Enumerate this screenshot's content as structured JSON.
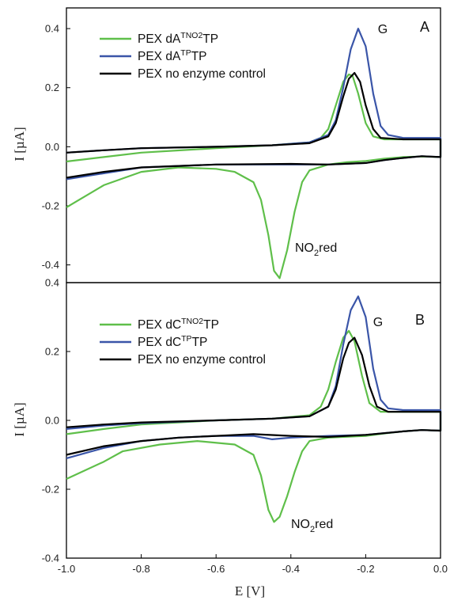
{
  "colors": {
    "green": "#5fbf4a",
    "blue": "#3a55a8",
    "black": "#000000"
  },
  "chart_data": [
    {
      "type": "line",
      "panel": "A",
      "peak_label": "G",
      "annotation": {
        "base": "NO",
        "sub": "2",
        "rest": "red"
      },
      "xlim": [
        -1.0,
        0.0
      ],
      "ylim": [
        -0.46,
        0.47
      ],
      "yticks": [
        "0.4",
        "0.2",
        "0.0",
        "-0.2",
        "-0.4"
      ],
      "ytick_values": [
        0.4,
        0.2,
        0.0,
        -0.2,
        -0.4
      ],
      "ylabel": "I [µA]",
      "legend": [
        {
          "pre": "PEX dA",
          "sup": "TNO2",
          "post": "TP",
          "color": "green"
        },
        {
          "pre": "PEX dA",
          "sup": "TP",
          "post": "TP",
          "color": "blue"
        },
        {
          "pre": "PEX no enzyme control",
          "sup": "",
          "post": "",
          "color": "black"
        }
      ],
      "series": [
        {
          "color": "green",
          "forward": [
            [
              -1.0,
              -0.05
            ],
            [
              -0.9,
              -0.035
            ],
            [
              -0.8,
              -0.02
            ],
            [
              -0.6,
              -0.005
            ],
            [
              -0.45,
              0.005
            ],
            [
              -0.35,
              0.015
            ],
            [
              -0.32,
              0.03
            ],
            [
              -0.3,
              0.06
            ],
            [
              -0.28,
              0.14
            ],
            [
              -0.26,
              0.22
            ],
            [
              -0.245,
              0.245
            ],
            [
              -0.235,
              0.24
            ],
            [
              -0.22,
              0.18
            ],
            [
              -0.2,
              0.08
            ],
            [
              -0.18,
              0.035
            ],
            [
              -0.15,
              0.025
            ],
            [
              -0.1,
              0.025
            ],
            [
              0.0,
              0.025
            ]
          ],
          "backward": [
            [
              0.0,
              -0.035
            ],
            [
              -0.05,
              -0.033
            ],
            [
              -0.1,
              -0.035
            ],
            [
              -0.15,
              -0.04
            ],
            [
              -0.2,
              -0.048
            ],
            [
              -0.25,
              -0.052
            ],
            [
              -0.3,
              -0.06
            ],
            [
              -0.35,
              -0.08
            ],
            [
              -0.37,
              -0.12
            ],
            [
              -0.39,
              -0.22
            ],
            [
              -0.41,
              -0.35
            ],
            [
              -0.43,
              -0.445
            ],
            [
              -0.445,
              -0.42
            ],
            [
              -0.46,
              -0.3
            ],
            [
              -0.48,
              -0.18
            ],
            [
              -0.5,
              -0.12
            ],
            [
              -0.55,
              -0.085
            ],
            [
              -0.6,
              -0.075
            ],
            [
              -0.7,
              -0.07
            ],
            [
              -0.8,
              -0.085
            ],
            [
              -0.9,
              -0.13
            ],
            [
              -1.0,
              -0.205
            ]
          ]
        },
        {
          "color": "blue",
          "forward": [
            [
              -1.0,
              -0.02
            ],
            [
              -0.9,
              -0.012
            ],
            [
              -0.8,
              -0.005
            ],
            [
              -0.6,
              0.0
            ],
            [
              -0.45,
              0.005
            ],
            [
              -0.35,
              0.015
            ],
            [
              -0.3,
              0.04
            ],
            [
              -0.28,
              0.09
            ],
            [
              -0.26,
              0.2
            ],
            [
              -0.24,
              0.33
            ],
            [
              -0.22,
              0.4
            ],
            [
              -0.2,
              0.34
            ],
            [
              -0.18,
              0.18
            ],
            [
              -0.16,
              0.07
            ],
            [
              -0.14,
              0.04
            ],
            [
              -0.1,
              0.03
            ],
            [
              0.0,
              0.03
            ]
          ],
          "backward": [
            [
              0.0,
              -0.035
            ],
            [
              -0.05,
              -0.032
            ],
            [
              -0.1,
              -0.038
            ],
            [
              -0.15,
              -0.045
            ],
            [
              -0.2,
              -0.055
            ],
            [
              -0.3,
              -0.06
            ],
            [
              -0.4,
              -0.06
            ],
            [
              -0.6,
              -0.06
            ],
            [
              -0.8,
              -0.07
            ],
            [
              -0.9,
              -0.09
            ],
            [
              -1.0,
              -0.11
            ]
          ]
        },
        {
          "color": "black",
          "forward": [
            [
              -1.0,
              -0.02
            ],
            [
              -0.9,
              -0.012
            ],
            [
              -0.8,
              -0.005
            ],
            [
              -0.6,
              0.0
            ],
            [
              -0.45,
              0.005
            ],
            [
              -0.35,
              0.012
            ],
            [
              -0.3,
              0.035
            ],
            [
              -0.28,
              0.08
            ],
            [
              -0.26,
              0.17
            ],
            [
              -0.245,
              0.23
            ],
            [
              -0.23,
              0.25
            ],
            [
              -0.215,
              0.22
            ],
            [
              -0.2,
              0.14
            ],
            [
              -0.18,
              0.06
            ],
            [
              -0.16,
              0.03
            ],
            [
              -0.1,
              0.025
            ],
            [
              0.0,
              0.025
            ]
          ],
          "backward": [
            [
              0.0,
              -0.035
            ],
            [
              -0.05,
              -0.032
            ],
            [
              -0.1,
              -0.038
            ],
            [
              -0.15,
              -0.045
            ],
            [
              -0.2,
              -0.055
            ],
            [
              -0.3,
              -0.06
            ],
            [
              -0.4,
              -0.058
            ],
            [
              -0.6,
              -0.06
            ],
            [
              -0.8,
              -0.07
            ],
            [
              -0.9,
              -0.085
            ],
            [
              -1.0,
              -0.105
            ]
          ]
        }
      ]
    },
    {
      "type": "line",
      "panel": "B",
      "peak_label": "G",
      "annotation": {
        "base": "NO",
        "sub": "2",
        "rest": "red"
      },
      "xlim": [
        -1.0,
        0.0
      ],
      "ylim": [
        -0.4,
        0.4
      ],
      "yticks": [
        "0.4",
        "0.2",
        "0.0",
        "-0.2",
        "-0.4"
      ],
      "ytick_values": [
        0.4,
        0.2,
        0.0,
        -0.2,
        -0.4
      ],
      "ylabel": "I [µA]",
      "xticks": [
        "-1.0",
        "-0.8",
        "-0.6",
        "-0.4",
        "-0.2",
        "0.0"
      ],
      "xtick_values": [
        -1.0,
        -0.8,
        -0.6,
        -0.4,
        -0.2,
        0.0
      ],
      "xlabel": "E [V]",
      "legend": [
        {
          "pre": "PEX dC",
          "sup": "TNO2",
          "post": "TP",
          "color": "green"
        },
        {
          "pre": "PEX dC",
          "sup": "TP",
          "post": "TP",
          "color": "blue"
        },
        {
          "pre": "PEX no enzyme control",
          "sup": "",
          "post": "",
          "color": "black"
        }
      ],
      "series": [
        {
          "color": "green",
          "forward": [
            [
              -1.0,
              -0.04
            ],
            [
              -0.9,
              -0.025
            ],
            [
              -0.8,
              -0.012
            ],
            [
              -0.6,
              0.0
            ],
            [
              -0.45,
              0.005
            ],
            [
              -0.35,
              0.015
            ],
            [
              -0.32,
              0.04
            ],
            [
              -0.3,
              0.09
            ],
            [
              -0.28,
              0.17
            ],
            [
              -0.26,
              0.24
            ],
            [
              -0.245,
              0.26
            ],
            [
              -0.23,
              0.23
            ],
            [
              -0.21,
              0.13
            ],
            [
              -0.19,
              0.05
            ],
            [
              -0.16,
              0.025
            ],
            [
              -0.1,
              0.025
            ],
            [
              0.0,
              0.025
            ]
          ],
          "backward": [
            [
              0.0,
              -0.03
            ],
            [
              -0.05,
              -0.028
            ],
            [
              -0.1,
              -0.032
            ],
            [
              -0.15,
              -0.038
            ],
            [
              -0.2,
              -0.045
            ],
            [
              -0.3,
              -0.05
            ],
            [
              -0.35,
              -0.06
            ],
            [
              -0.37,
              -0.09
            ],
            [
              -0.39,
              -0.15
            ],
            [
              -0.41,
              -0.22
            ],
            [
              -0.43,
              -0.28
            ],
            [
              -0.445,
              -0.295
            ],
            [
              -0.46,
              -0.26
            ],
            [
              -0.48,
              -0.16
            ],
            [
              -0.5,
              -0.1
            ],
            [
              -0.55,
              -0.07
            ],
            [
              -0.65,
              -0.06
            ],
            [
              -0.75,
              -0.07
            ],
            [
              -0.85,
              -0.09
            ],
            [
              -0.9,
              -0.12
            ],
            [
              -1.0,
              -0.17
            ]
          ]
        },
        {
          "color": "blue",
          "forward": [
            [
              -1.0,
              -0.025
            ],
            [
              -0.9,
              -0.015
            ],
            [
              -0.8,
              -0.008
            ],
            [
              -0.6,
              0.0
            ],
            [
              -0.45,
              0.005
            ],
            [
              -0.35,
              0.012
            ],
            [
              -0.3,
              0.04
            ],
            [
              -0.28,
              0.1
            ],
            [
              -0.26,
              0.22
            ],
            [
              -0.24,
              0.32
            ],
            [
              -0.22,
              0.36
            ],
            [
              -0.2,
              0.3
            ],
            [
              -0.18,
              0.15
            ],
            [
              -0.16,
              0.06
            ],
            [
              -0.14,
              0.035
            ],
            [
              -0.1,
              0.03
            ],
            [
              0.0,
              0.03
            ]
          ],
          "backward": [
            [
              0.0,
              -0.03
            ],
            [
              -0.05,
              -0.028
            ],
            [
              -0.1,
              -0.032
            ],
            [
              -0.2,
              -0.042
            ],
            [
              -0.3,
              -0.045
            ],
            [
              -0.4,
              -0.05
            ],
            [
              -0.45,
              -0.055
            ],
            [
              -0.5,
              -0.045
            ],
            [
              -0.6,
              -0.045
            ],
            [
              -0.7,
              -0.05
            ],
            [
              -0.8,
              -0.06
            ],
            [
              -0.9,
              -0.08
            ],
            [
              -1.0,
              -0.11
            ]
          ]
        },
        {
          "color": "black",
          "forward": [
            [
              -1.0,
              -0.02
            ],
            [
              -0.9,
              -0.012
            ],
            [
              -0.8,
              -0.006
            ],
            [
              -0.6,
              0.0
            ],
            [
              -0.45,
              0.005
            ],
            [
              -0.35,
              0.012
            ],
            [
              -0.3,
              0.04
            ],
            [
              -0.28,
              0.09
            ],
            [
              -0.26,
              0.18
            ],
            [
              -0.245,
              0.225
            ],
            [
              -0.23,
              0.24
            ],
            [
              -0.21,
              0.19
            ],
            [
              -0.19,
              0.1
            ],
            [
              -0.17,
              0.04
            ],
            [
              -0.14,
              0.025
            ],
            [
              -0.1,
              0.025
            ],
            [
              0.0,
              0.025
            ]
          ],
          "backward": [
            [
              0.0,
              -0.03
            ],
            [
              -0.05,
              -0.028
            ],
            [
              -0.1,
              -0.032
            ],
            [
              -0.2,
              -0.042
            ],
            [
              -0.3,
              -0.048
            ],
            [
              -0.4,
              -0.045
            ],
            [
              -0.5,
              -0.04
            ],
            [
              -0.6,
              -0.045
            ],
            [
              -0.7,
              -0.05
            ],
            [
              -0.8,
              -0.06
            ],
            [
              -0.9,
              -0.075
            ],
            [
              -1.0,
              -0.1
            ]
          ]
        }
      ]
    }
  ]
}
